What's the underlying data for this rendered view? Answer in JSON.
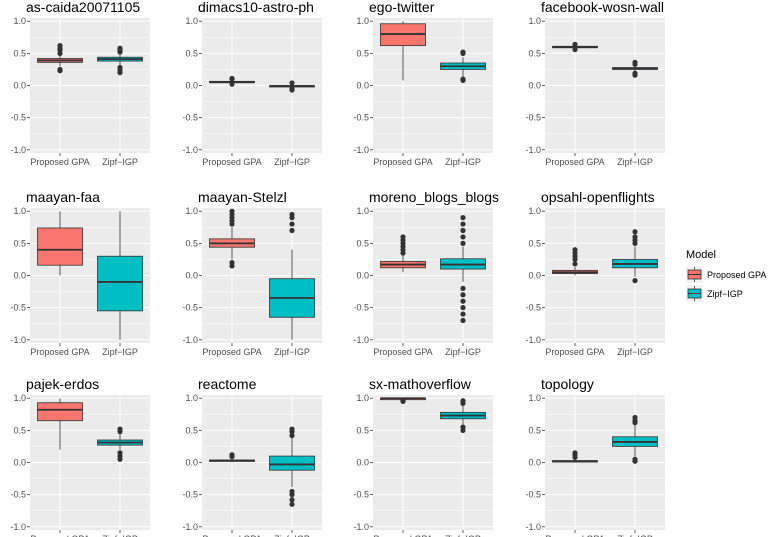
{
  "colors": {
    "panel_bg": "#ebebeb",
    "grid": "#ffffff",
    "proposed": "#f8766d",
    "zipf": "#00bfc4",
    "outline": "#333333"
  },
  "legend": {
    "title": "Model",
    "entries": [
      {
        "label": "Proposed GPA",
        "color": "#f8766d"
      },
      {
        "label": "Zipf−IGP",
        "color": "#00bfc4"
      }
    ]
  },
  "chart_data": {
    "type": "boxplot-facets",
    "categories": [
      "Proposed GPA",
      "Zipf−IGP"
    ],
    "ylim": [
      -1.05,
      1.05
    ],
    "yticks": [
      "1.0",
      "0.5",
      "0.0",
      "-0.5",
      "-1.0"
    ],
    "ytick_values": [
      1.0,
      0.5,
      0.0,
      -0.5,
      -1.0
    ],
    "grid": true,
    "legend_position": "right",
    "panels": [
      {
        "title": "as-caida20071105",
        "boxes": [
          {
            "q1": 0.36,
            "median": 0.39,
            "q3": 0.42,
            "wlo": 0.3,
            "whi": 0.46,
            "outliers": [
              0.25,
              0.23,
              0.5,
              0.55,
              0.58,
              0.62
            ]
          },
          {
            "q1": 0.38,
            "median": 0.41,
            "q3": 0.44,
            "wlo": 0.32,
            "whi": 0.48,
            "outliers": [
              0.28,
              0.24,
              0.2,
              0.52,
              0.55,
              0.58
            ]
          }
        ]
      },
      {
        "title": "dimacs10-astro-ph",
        "boxes": [
          {
            "q1": 0.045,
            "median": 0.055,
            "q3": 0.065,
            "wlo": 0.03,
            "whi": 0.08,
            "outliers": [
              0.02,
              0.1,
              0.11
            ]
          },
          {
            "q1": -0.02,
            "median": -0.01,
            "q3": 0.0,
            "wlo": -0.035,
            "whi": 0.015,
            "outliers": [
              -0.05,
              -0.07,
              0.04
            ]
          }
        ]
      },
      {
        "title": "ego-twitter",
        "boxes": [
          {
            "q1": 0.62,
            "median": 0.8,
            "q3": 0.96,
            "wlo": 0.08,
            "whi": 1.0,
            "outliers": []
          },
          {
            "q1": 0.25,
            "median": 0.3,
            "q3": 0.35,
            "wlo": 0.13,
            "whi": 0.44,
            "outliers": [
              0.08,
              0.1,
              0.5,
              0.52
            ]
          }
        ]
      },
      {
        "title": "facebook-wosn-wall",
        "boxes": [
          {
            "q1": 0.59,
            "median": 0.6,
            "q3": 0.61,
            "wlo": 0.575,
            "whi": 0.625,
            "outliers": [
              0.56,
              0.64
            ]
          },
          {
            "q1": 0.25,
            "median": 0.26,
            "q3": 0.28,
            "wlo": 0.225,
            "whi": 0.3,
            "outliers": [
              0.16,
              0.19,
              0.33,
              0.36
            ]
          }
        ]
      },
      {
        "title": "maayan-faa",
        "boxes": [
          {
            "q1": 0.16,
            "median": 0.4,
            "q3": 0.74,
            "wlo": 0.0,
            "whi": 1.0,
            "outliers": []
          },
          {
            "q1": -0.55,
            "median": -0.1,
            "q3": 0.3,
            "wlo": -1.0,
            "whi": 1.0,
            "outliers": []
          }
        ]
      },
      {
        "title": "maayan-Stelzl",
        "boxes": [
          {
            "q1": 0.44,
            "median": 0.5,
            "q3": 0.57,
            "wlo": 0.25,
            "whi": 0.75,
            "outliers": [
              0.15,
              0.2,
              0.8,
              0.85,
              0.9,
              0.95,
              1.0
            ]
          },
          {
            "q1": -0.65,
            "median": -0.35,
            "q3": -0.05,
            "wlo": -1.0,
            "whi": 0.4,
            "outliers": [
              0.7,
              0.8,
              0.9,
              0.95
            ]
          }
        ]
      },
      {
        "title": "moreno_blogs_blogs",
        "boxes": [
          {
            "q1": 0.12,
            "median": 0.17,
            "q3": 0.22,
            "wlo": 0.05,
            "whi": 0.32,
            "outliers": [
              0.35,
              0.4,
              0.45,
              0.5,
              0.55,
              0.6
            ]
          },
          {
            "q1": 0.1,
            "median": 0.17,
            "q3": 0.26,
            "wlo": -0.1,
            "whi": 0.45,
            "outliers": [
              -0.2,
              -0.3,
              -0.4,
              -0.5,
              -0.6,
              -0.7,
              0.5,
              0.6,
              0.7,
              0.8,
              0.9
            ]
          }
        ]
      },
      {
        "title": "opsahl-openflights",
        "boxes": [
          {
            "q1": 0.03,
            "median": 0.05,
            "q3": 0.08,
            "wlo": 0.0,
            "whi": 0.13,
            "outliers": [
              0.18,
              0.25,
              0.3,
              0.35,
              0.4
            ]
          },
          {
            "q1": 0.12,
            "median": 0.18,
            "q3": 0.25,
            "wlo": -0.02,
            "whi": 0.45,
            "outliers": [
              -0.08,
              0.5,
              0.55,
              0.6,
              0.68
            ]
          }
        ]
      },
      {
        "title": "pajek-erdos",
        "boxes": [
          {
            "q1": 0.65,
            "median": 0.82,
            "q3": 0.93,
            "wlo": 0.2,
            "whi": 1.0,
            "outliers": []
          },
          {
            "q1": 0.27,
            "median": 0.31,
            "q3": 0.35,
            "wlo": 0.2,
            "whi": 0.44,
            "outliers": [
              0.05,
              0.1,
              0.15,
              0.48,
              0.52
            ]
          }
        ]
      },
      {
        "title": "reactome",
        "boxes": [
          {
            "q1": 0.02,
            "median": 0.03,
            "q3": 0.04,
            "wlo": 0.01,
            "whi": 0.06,
            "outliers": [
              0.09,
              0.12
            ]
          },
          {
            "q1": -0.12,
            "median": -0.03,
            "q3": 0.1,
            "wlo": -0.38,
            "whi": 0.38,
            "outliers": [
              -0.45,
              -0.5,
              -0.58,
              -0.65,
              0.42,
              0.48,
              0.52
            ]
          }
        ]
      },
      {
        "title": "sx-mathoverflow",
        "boxes": [
          {
            "q1": 0.99,
            "median": 1.0,
            "q3": 1.0,
            "wlo": 0.985,
            "whi": 1.0,
            "outliers": [
              0.95,
              0.96
            ]
          },
          {
            "q1": 0.68,
            "median": 0.73,
            "q3": 0.78,
            "wlo": 0.58,
            "whi": 0.88,
            "outliers": [
              0.5,
              0.55,
              0.92,
              0.96
            ]
          }
        ]
      },
      {
        "title": "topology",
        "boxes": [
          {
            "q1": 0.015,
            "median": 0.02,
            "q3": 0.03,
            "wlo": 0.0,
            "whi": 0.05,
            "outliers": [
              0.08,
              0.12,
              0.15
            ]
          },
          {
            "q1": 0.25,
            "median": 0.32,
            "q3": 0.4,
            "wlo": 0.1,
            "whi": 0.58,
            "outliers": [
              0.02,
              0.05,
              0.62,
              0.65,
              0.7
            ]
          }
        ]
      }
    ]
  }
}
